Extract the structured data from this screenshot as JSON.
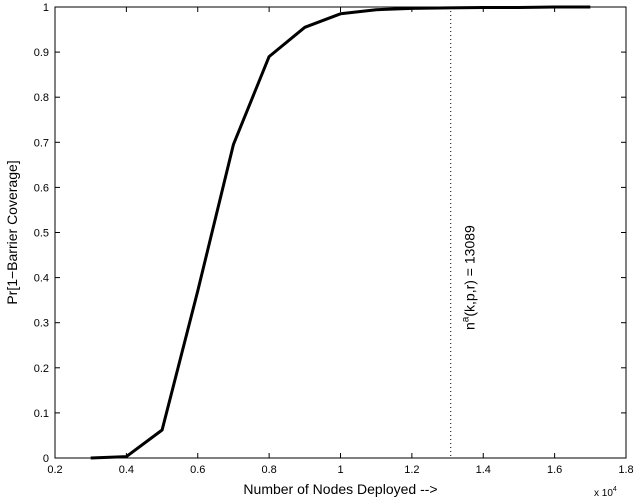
{
  "chart_data": {
    "type": "line",
    "title": "",
    "xlabel": "Number of Nodes Deployed -->",
    "ylabel": "Pr[1−Barrier Coverage]",
    "x_multiplier": "x 10",
    "x_multiplier_exp": "4",
    "xlim": [
      0.2,
      1.8
    ],
    "ylim": [
      0,
      1
    ],
    "xticks": [
      0.2,
      0.4,
      0.6,
      0.8,
      1.0,
      1.2,
      1.4,
      1.6,
      1.8
    ],
    "xtick_labels": [
      "0.2",
      "0.4",
      "0.6",
      "0.8",
      "1",
      "1.2",
      "1.4",
      "1.6",
      "1.8"
    ],
    "yticks": [
      0,
      0.1,
      0.2,
      0.3,
      0.4,
      0.5,
      0.6,
      0.7,
      0.8,
      0.9,
      1
    ],
    "ytick_labels": [
      "0",
      "0.1",
      "0.2",
      "0.3",
      "0.4",
      "0.5",
      "0.6",
      "0.7",
      "0.8",
      "0.9",
      "1"
    ],
    "grid": false,
    "series": [
      {
        "x": [
          0.3,
          0.4,
          0.5,
          0.6,
          0.7,
          0.8,
          0.9,
          1.0,
          1.1,
          1.2,
          1.3,
          1.4,
          1.5,
          1.6,
          1.7
        ],
        "y": [
          0.0,
          0.003,
          0.062,
          0.37,
          0.695,
          0.89,
          0.955,
          0.985,
          0.994,
          0.997,
          0.998,
          0.999,
          0.999,
          1.0,
          1.0
        ],
        "color": "#000000"
      }
    ],
    "vline": {
      "x": 1.3089,
      "style": "dotted",
      "color": "#000000"
    },
    "annotation": {
      "base": "n",
      "sup": "a",
      "rest": "(k,p,r) = 13089"
    }
  }
}
